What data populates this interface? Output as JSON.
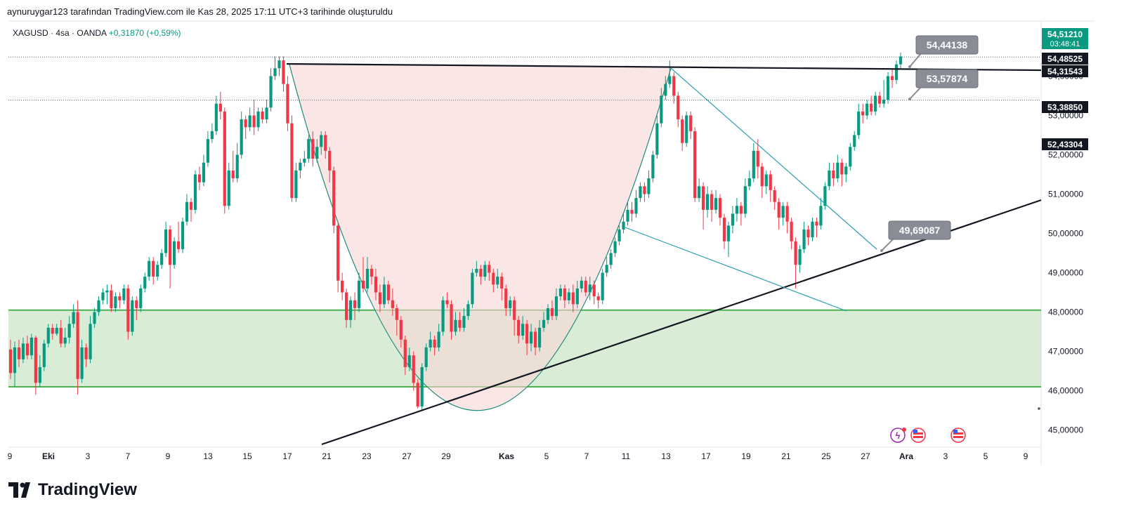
{
  "header": {
    "created_by": "aynuruygar123 tarafından TradingView.com ile Kas 28, 2025 17:11 UTC+3 tarihinde oluşturuldu"
  },
  "symbol": {
    "name": "XAGUSD · 4sa · OANDA",
    "change": "+0,31870 (+0,59%)"
  },
  "brand": {
    "name": "TradingView"
  },
  "colors": {
    "up": "#089981",
    "down": "#f23645",
    "support_zone": "#b9dfb5",
    "cup_fill": "#f8d6d6",
    "trendline": "#131722",
    "wedge_line": "#2ca0b0",
    "callout": "#8a8d96",
    "price_tag_dark": "#131722",
    "price_tag_green": "#089981"
  },
  "chart_data": {
    "type": "candlestick",
    "instrument": "XAGUSD",
    "timeframe": "4sa",
    "x_tick_labels": [
      "9",
      "Eki",
      "3",
      "7",
      "9",
      "13",
      "15",
      "17",
      "21",
      "23",
      "27",
      "29",
      "Kas",
      "5",
      "7",
      "11",
      "13",
      "17",
      "19",
      "21",
      "25",
      "27",
      "Ara",
      "3",
      "5",
      "9"
    ],
    "y_tick_labels": [
      "54,00000",
      "53,00000",
      "52,00000",
      "51,00000",
      "50,00000",
      "49,00000",
      "48,00000",
      "47,00000",
      "46,00000",
      "45,00000"
    ],
    "ylim": [
      44.6,
      55.4
    ],
    "price_tags": [
      {
        "value": "54,51210",
        "extra": "03:48:41",
        "style": "green"
      },
      {
        "value": "54,48525",
        "style": "dark"
      },
      {
        "value": "54,31543",
        "style": "dark"
      },
      {
        "value": "53,38850",
        "style": "dark"
      },
      {
        "value": "52,43304",
        "style": "dark"
      }
    ],
    "callouts": [
      "54,44138",
      "53,57874",
      "49,69087"
    ],
    "support_zone": [
      46.1,
      48.05
    ],
    "candles": [
      [
        47.05,
        46.45,
        47.3,
        46.3
      ],
      [
        46.45,
        47.1,
        47.25,
        46.1
      ],
      [
        47.1,
        46.8,
        47.3,
        46.6
      ],
      [
        46.8,
        47.2,
        47.35,
        46.7
      ],
      [
        47.2,
        46.9,
        47.4,
        46.8
      ],
      [
        46.9,
        47.35,
        47.45,
        46.8
      ],
      [
        47.35,
        46.2,
        47.4,
        45.9
      ],
      [
        46.2,
        46.6,
        46.9,
        46.1
      ],
      [
        46.6,
        47.2,
        47.3,
        46.5
      ],
      [
        47.2,
        47.6,
        47.7,
        47.1
      ],
      [
        47.6,
        47.45,
        47.7,
        47.3
      ],
      [
        47.45,
        47.6,
        47.7,
        47.4
      ],
      [
        47.6,
        47.2,
        47.8,
        47.1
      ],
      [
        47.2,
        47.35,
        47.6,
        47.1
      ],
      [
        47.35,
        47.7,
        47.9,
        47.2
      ],
      [
        47.7,
        48.0,
        48.2,
        47.6
      ],
      [
        48.0,
        46.3,
        48.3,
        45.9
      ],
      [
        46.3,
        47.1,
        47.3,
        46.2
      ],
      [
        47.1,
        46.8,
        47.2,
        46.6
      ],
      [
        46.8,
        47.7,
        47.9,
        46.7
      ],
      [
        47.7,
        48.0,
        48.1,
        47.6
      ],
      [
        48.0,
        48.3,
        48.4,
        47.9
      ],
      [
        48.3,
        48.5,
        48.6,
        48.2
      ],
      [
        48.5,
        48.55,
        48.7,
        48.2
      ],
      [
        48.55,
        48.1,
        48.7,
        48.0
      ],
      [
        48.1,
        48.4,
        48.5,
        48.0
      ],
      [
        48.4,
        48.3,
        48.5,
        48.1
      ],
      [
        48.3,
        48.6,
        48.7,
        48.2
      ],
      [
        48.6,
        47.5,
        48.7,
        47.3
      ],
      [
        47.5,
        48.3,
        48.4,
        47.4
      ],
      [
        48.3,
        48.1,
        48.4,
        47.8
      ],
      [
        48.1,
        48.6,
        48.7,
        48.0
      ],
      [
        48.6,
        48.9,
        49.0,
        48.5
      ],
      [
        48.9,
        49.3,
        49.4,
        48.8
      ],
      [
        49.3,
        48.9,
        49.4,
        48.7
      ],
      [
        48.9,
        49.2,
        49.3,
        48.8
      ],
      [
        49.2,
        49.5,
        49.6,
        49.1
      ],
      [
        49.5,
        50.1,
        50.3,
        49.4
      ],
      [
        50.1,
        49.2,
        50.2,
        48.6
      ],
      [
        49.2,
        49.8,
        49.9,
        49.1
      ],
      [
        49.8,
        49.6,
        50.3,
        49.5
      ],
      [
        49.6,
        50.3,
        50.4,
        49.5
      ],
      [
        50.3,
        50.8,
        51.0,
        50.2
      ],
      [
        50.8,
        50.6,
        50.9,
        50.3
      ],
      [
        50.6,
        51.5,
        51.6,
        50.5
      ],
      [
        51.5,
        51.3,
        51.7,
        51.1
      ],
      [
        51.3,
        51.8,
        52.0,
        51.2
      ],
      [
        51.8,
        52.4,
        52.6,
        51.7
      ],
      [
        52.4,
        52.6,
        52.8,
        52.3
      ],
      [
        52.6,
        53.3,
        53.5,
        52.5
      ],
      [
        53.3,
        53.1,
        53.6,
        52.9
      ],
      [
        53.1,
        50.7,
        53.2,
        50.5
      ],
      [
        50.7,
        51.6,
        51.8,
        50.6
      ],
      [
        51.6,
        51.4,
        52.1,
        51.3
      ],
      [
        51.4,
        52.0,
        52.3,
        51.3
      ],
      [
        52.0,
        52.9,
        53.1,
        51.9
      ],
      [
        52.9,
        52.7,
        53.0,
        52.4
      ],
      [
        52.7,
        53.0,
        53.2,
        52.6
      ],
      [
        53.0,
        52.7,
        53.4,
        52.5
      ],
      [
        52.7,
        53.1,
        53.2,
        52.6
      ],
      [
        53.1,
        52.9,
        53.2,
        52.8
      ],
      [
        52.9,
        53.2,
        53.4,
        52.8
      ],
      [
        53.2,
        54.0,
        54.2,
        53.1
      ],
      [
        54.0,
        54.2,
        54.5,
        53.9
      ],
      [
        54.2,
        54.4,
        54.5,
        54.0
      ],
      [
        54.4,
        53.8,
        54.5,
        53.6
      ],
      [
        53.8,
        52.8,
        54.0,
        52.6
      ],
      [
        52.8,
        50.9,
        53.0,
        50.8
      ],
      [
        50.9,
        51.6,
        51.8,
        50.8
      ],
      [
        51.6,
        51.8,
        51.9,
        51.4
      ],
      [
        51.8,
        51.9,
        52.1,
        51.7
      ],
      [
        51.9,
        52.4,
        52.5,
        51.8
      ],
      [
        52.4,
        51.9,
        52.6,
        51.7
      ],
      [
        51.9,
        52.2,
        52.4,
        51.8
      ],
      [
        52.2,
        52.5,
        52.6,
        52.0
      ],
      [
        52.5,
        52.1,
        52.6,
        51.9
      ],
      [
        52.1,
        51.6,
        52.2,
        51.3
      ],
      [
        51.6,
        50.2,
        51.7,
        50.0
      ],
      [
        50.2,
        48.8,
        50.3,
        48.5
      ],
      [
        48.8,
        48.5,
        49.0,
        48.3
      ],
      [
        48.5,
        47.8,
        48.6,
        47.6
      ],
      [
        47.8,
        48.3,
        48.4,
        47.6
      ],
      [
        48.3,
        48.1,
        48.5,
        47.8
      ],
      [
        48.1,
        48.8,
        49.0,
        48.0
      ],
      [
        48.8,
        48.6,
        49.4,
        48.5
      ],
      [
        48.6,
        49.1,
        49.4,
        48.5
      ],
      [
        49.1,
        48.9,
        49.2,
        48.7
      ],
      [
        48.9,
        48.5,
        49.1,
        48.3
      ],
      [
        48.5,
        48.2,
        48.7,
        48.0
      ],
      [
        48.2,
        48.7,
        48.9,
        48.1
      ],
      [
        48.7,
        48.3,
        48.8,
        48.2
      ],
      [
        48.3,
        48.1,
        48.6,
        47.9
      ],
      [
        48.1,
        47.8,
        48.2,
        47.4
      ],
      [
        47.8,
        47.3,
        47.9,
        47.1
      ],
      [
        47.3,
        46.6,
        47.4,
        46.4
      ],
      [
        46.6,
        46.9,
        47.1,
        46.5
      ],
      [
        46.9,
        46.2,
        47.0,
        46.0
      ],
      [
        46.2,
        45.6,
        46.3,
        45.55
      ],
      [
        45.6,
        46.6,
        46.7,
        45.5
      ],
      [
        46.6,
        47.1,
        47.2,
        46.5
      ],
      [
        47.1,
        47.3,
        47.5,
        47.0
      ],
      [
        47.3,
        47.1,
        47.4,
        46.9
      ],
      [
        47.1,
        47.5,
        47.7,
        47.0
      ],
      [
        47.5,
        48.3,
        48.4,
        47.4
      ],
      [
        48.3,
        48.2,
        48.5,
        48.1
      ],
      [
        48.2,
        47.5,
        48.3,
        47.3
      ],
      [
        47.5,
        47.8,
        48.0,
        47.4
      ],
      [
        47.8,
        47.6,
        48.0,
        47.5
      ],
      [
        47.6,
        47.9,
        48.1,
        47.5
      ],
      [
        47.9,
        48.2,
        48.3,
        47.8
      ],
      [
        48.2,
        49.0,
        49.1,
        48.1
      ],
      [
        49.0,
        49.1,
        49.3,
        48.9
      ],
      [
        49.1,
        48.9,
        49.2,
        48.7
      ],
      [
        48.9,
        49.2,
        49.3,
        48.8
      ],
      [
        49.2,
        49.0,
        49.3,
        48.8
      ],
      [
        49.0,
        48.7,
        49.1,
        48.5
      ],
      [
        48.7,
        48.9,
        49.1,
        48.6
      ],
      [
        48.9,
        48.6,
        49.0,
        48.3
      ],
      [
        48.6,
        48.1,
        48.7,
        47.9
      ],
      [
        48.1,
        48.3,
        48.4,
        47.9
      ],
      [
        48.3,
        47.8,
        48.4,
        47.4
      ],
      [
        47.8,
        47.4,
        47.9,
        47.2
      ],
      [
        47.4,
        47.7,
        47.9,
        47.3
      ],
      [
        47.7,
        47.2,
        47.8,
        46.9
      ],
      [
        47.2,
        47.5,
        47.7,
        47.0
      ],
      [
        47.5,
        47.1,
        47.6,
        46.9
      ],
      [
        47.1,
        47.6,
        47.8,
        47.0
      ],
      [
        47.6,
        47.8,
        48.0,
        47.5
      ],
      [
        47.8,
        48.1,
        48.2,
        47.7
      ],
      [
        48.1,
        47.9,
        48.3,
        47.8
      ],
      [
        47.9,
        48.4,
        48.6,
        47.8
      ],
      [
        48.4,
        48.6,
        48.7,
        48.3
      ],
      [
        48.6,
        48.3,
        48.7,
        48.1
      ],
      [
        48.3,
        48.5,
        48.6,
        48.2
      ],
      [
        48.5,
        48.2,
        48.7,
        48.0
      ],
      [
        48.2,
        48.6,
        48.8,
        48.1
      ],
      [
        48.6,
        48.8,
        48.9,
        48.5
      ],
      [
        48.8,
        48.5,
        48.9,
        48.4
      ],
      [
        48.5,
        48.7,
        48.9,
        48.3
      ],
      [
        48.7,
        48.4,
        48.8,
        48.2
      ],
      [
        48.4,
        48.3,
        48.5,
        48.1
      ],
      [
        48.3,
        49.0,
        49.1,
        48.2
      ],
      [
        49.0,
        49.2,
        49.4,
        48.9
      ],
      [
        49.2,
        49.5,
        49.6,
        49.1
      ],
      [
        49.5,
        49.8,
        49.9,
        49.4
      ],
      [
        49.8,
        50.1,
        50.2,
        49.7
      ],
      [
        50.1,
        50.3,
        50.5,
        50.0
      ],
      [
        50.3,
        50.6,
        50.8,
        50.2
      ],
      [
        50.6,
        50.5,
        50.8,
        50.3
      ],
      [
        50.5,
        50.9,
        51.1,
        50.4
      ],
      [
        50.9,
        51.2,
        51.3,
        50.8
      ],
      [
        51.2,
        51.0,
        51.3,
        50.8
      ],
      [
        51.0,
        51.4,
        51.6,
        50.9
      ],
      [
        51.4,
        52.0,
        52.1,
        51.3
      ],
      [
        52.0,
        52.8,
        53.0,
        51.9
      ],
      [
        52.8,
        53.5,
        53.7,
        52.7
      ],
      [
        53.5,
        53.8,
        54.0,
        53.4
      ],
      [
        53.8,
        54.0,
        54.4,
        53.7
      ],
      [
        54.0,
        53.5,
        54.1,
        53.3
      ],
      [
        53.5,
        52.9,
        53.6,
        52.7
      ],
      [
        52.9,
        52.3,
        53.0,
        52.1
      ],
      [
        52.3,
        53.0,
        53.1,
        52.2
      ],
      [
        53.0,
        52.6,
        53.1,
        52.4
      ],
      [
        52.6,
        50.9,
        52.7,
        50.8
      ],
      [
        50.9,
        51.2,
        51.4,
        50.8
      ],
      [
        51.2,
        50.6,
        51.3,
        50.1
      ],
      [
        50.6,
        51.0,
        51.2,
        50.4
      ],
      [
        51.0,
        50.6,
        51.1,
        50.3
      ],
      [
        50.6,
        50.9,
        51.1,
        50.5
      ],
      [
        50.9,
        50.4,
        51.0,
        50.2
      ],
      [
        50.4,
        49.8,
        50.5,
        49.6
      ],
      [
        49.8,
        50.2,
        50.3,
        49.4
      ],
      [
        50.2,
        50.5,
        50.7,
        50.0
      ],
      [
        50.5,
        50.7,
        50.9,
        50.3
      ],
      [
        50.7,
        50.5,
        50.8,
        50.2
      ],
      [
        50.5,
        51.2,
        51.4,
        50.4
      ],
      [
        51.2,
        51.4,
        51.6,
        51.1
      ],
      [
        51.4,
        52.1,
        52.3,
        51.3
      ],
      [
        52.1,
        51.7,
        52.4,
        51.4
      ],
      [
        51.7,
        51.2,
        51.8,
        50.9
      ],
      [
        51.2,
        51.5,
        51.6,
        51.0
      ],
      [
        51.5,
        51.1,
        51.6,
        50.8
      ],
      [
        51.1,
        50.8,
        51.2,
        50.6
      ],
      [
        50.8,
        50.4,
        50.9,
        50.1
      ],
      [
        50.4,
        50.7,
        50.8,
        50.2
      ],
      [
        50.7,
        50.3,
        50.8,
        50.0
      ],
      [
        50.3,
        49.8,
        50.4,
        49.6
      ],
      [
        49.8,
        49.2,
        49.9,
        48.6
      ],
      [
        49.2,
        49.6,
        49.7,
        49.0
      ],
      [
        49.6,
        50.1,
        50.3,
        49.5
      ],
      [
        50.1,
        49.9,
        50.2,
        49.7
      ],
      [
        49.9,
        50.3,
        50.4,
        49.8
      ],
      [
        50.3,
        50.2,
        50.4,
        49.9
      ],
      [
        50.2,
        50.7,
        50.9,
        50.1
      ],
      [
        50.7,
        51.2,
        51.3,
        50.6
      ],
      [
        51.2,
        51.6,
        51.8,
        51.1
      ],
      [
        51.6,
        51.4,
        51.8,
        51.2
      ],
      [
        51.4,
        51.8,
        52.0,
        51.3
      ],
      [
        51.8,
        51.5,
        51.9,
        51.2
      ],
      [
        51.5,
        51.7,
        51.8,
        51.3
      ],
      [
        51.7,
        52.2,
        52.3,
        51.6
      ],
      [
        52.2,
        52.5,
        52.6,
        52.1
      ],
      [
        52.5,
        53.1,
        53.3,
        52.4
      ],
      [
        53.1,
        53.0,
        53.3,
        52.8
      ],
      [
        53.0,
        53.3,
        53.4,
        52.9
      ],
      [
        53.3,
        53.1,
        53.5,
        53.0
      ],
      [
        53.1,
        53.5,
        53.6,
        53.0
      ],
      [
        53.5,
        53.3,
        53.6,
        53.2
      ],
      [
        53.3,
        53.4,
        53.9,
        53.2
      ],
      [
        53.4,
        54.0,
        54.1,
        53.3
      ],
      [
        54.0,
        53.9,
        54.2,
        53.7
      ],
      [
        53.9,
        54.3,
        54.4,
        53.8
      ],
      [
        54.3,
        54.5,
        54.6,
        54.2
      ]
    ]
  }
}
